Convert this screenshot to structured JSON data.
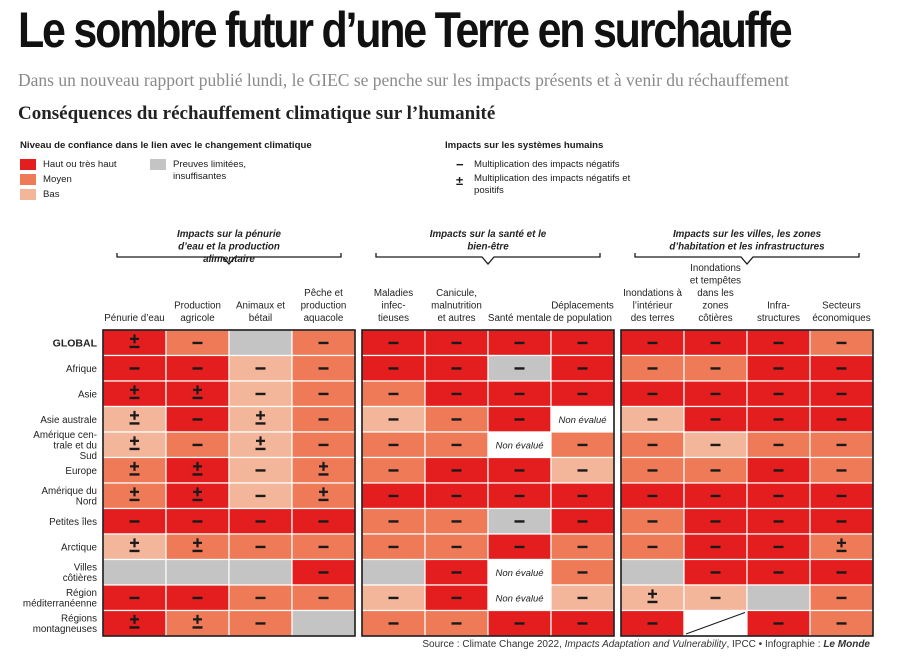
{
  "title": "Le sombre futur d’une Terre en surchauffe",
  "subtitle": "Dans un nouveau rapport publié lundi, le GIEC se penche sur les impacts présents et à venir du réchauffement",
  "colors": {
    "high": "#e41e1f",
    "medium": "#ee7a57",
    "low": "#f4b69a",
    "limited": "#c4c4c4",
    "none": "#ffffff",
    "grid": "#1a1a1a"
  },
  "legend": {
    "confidence_title": "Niveau de confiance dans le lien avec le changement climatique",
    "confidence_items": [
      {
        "key": "high",
        "label": "Haut ou très haut"
      },
      {
        "key": "medium",
        "label": "Moyen"
      },
      {
        "key": "low",
        "label": "Bas"
      },
      {
        "key": "limited",
        "label": "Preuves limitées, insuffisantes"
      }
    ],
    "impacts_title": "Impacts sur les systèmes humains",
    "impacts_items": [
      {
        "symbol": "−",
        "label": "Multiplication des impacts négatifs"
      },
      {
        "symbol": "±",
        "label": "Multiplication des impacts négatifs et positifs"
      }
    ]
  },
  "source": {
    "prefix": "Source : Climate Change 2022, ",
    "report": "Impacts Adaptation and Vulnerability",
    "middle": ", IPCC  •  Infographie : ",
    "publisher": "Le Monde"
  },
  "chart_data": {
    "type": "table",
    "title": "Conséquences du réchauffement climatique sur l’humanité",
    "not_assessed_label": "Non évalué",
    "groups": [
      {
        "label": "Impacts sur la pénurie d’eau et la production alimentaire",
        "columns": [
          0,
          1,
          2,
          3
        ]
      },
      {
        "label": "Impacts sur la santé et le bien-être",
        "columns": [
          4,
          5,
          6,
          7
        ]
      },
      {
        "label": "Impacts sur les villes, les zones d’habitation et les infrastructures",
        "columns": [
          8,
          9,
          10,
          11
        ]
      }
    ],
    "columns": [
      "Pénurie d’eau",
      "Production agricole",
      "Animaux et bétail",
      "Pêche et production aquacole",
      "Maladies infec- tieuses",
      "Canicule, malnutrition et autres",
      "Santé mentale",
      "Déplacements de population",
      "Inondations à l’intérieur des terres",
      "Inondations et tempêtes dans les zones côtières",
      "Infra- structures",
      "Secteurs écono­miques"
    ],
    "rows": [
      {
        "region": "GLOBAL",
        "cells": [
          [
            "high",
            "±"
          ],
          [
            "medium",
            "−"
          ],
          [
            "limited",
            ""
          ],
          [
            "medium",
            "−"
          ],
          [
            "high",
            "−"
          ],
          [
            "high",
            "−"
          ],
          [
            "high",
            "−"
          ],
          [
            "high",
            "−"
          ],
          [
            "high",
            "−"
          ],
          [
            "high",
            "−"
          ],
          [
            "high",
            "−"
          ],
          [
            "medium",
            "−"
          ]
        ]
      },
      {
        "region": "Afrique",
        "cells": [
          [
            "high",
            "−"
          ],
          [
            "high",
            "−"
          ],
          [
            "low",
            "−"
          ],
          [
            "medium",
            "−"
          ],
          [
            "high",
            "−"
          ],
          [
            "high",
            "−"
          ],
          [
            "limited",
            "−"
          ],
          [
            "high",
            "−"
          ],
          [
            "medium",
            "−"
          ],
          [
            "medium",
            "−"
          ],
          [
            "high",
            "−"
          ],
          [
            "high",
            "−"
          ]
        ]
      },
      {
        "region": "Asie",
        "cells": [
          [
            "high",
            "±"
          ],
          [
            "high",
            "±"
          ],
          [
            "low",
            "−"
          ],
          [
            "medium",
            "−"
          ],
          [
            "medium",
            "−"
          ],
          [
            "high",
            "−"
          ],
          [
            "high",
            "−"
          ],
          [
            "high",
            "−"
          ],
          [
            "high",
            "−"
          ],
          [
            "high",
            "−"
          ],
          [
            "high",
            "−"
          ],
          [
            "high",
            "−"
          ]
        ]
      },
      {
        "region": "Asie australe",
        "cells": [
          [
            "low",
            "±"
          ],
          [
            "high",
            "−"
          ],
          [
            "low",
            "±"
          ],
          [
            "medium",
            "−"
          ],
          [
            "low",
            "−"
          ],
          [
            "medium",
            "−"
          ],
          [
            "high",
            "−"
          ],
          [
            "none",
            "na"
          ],
          [
            "low",
            "−"
          ],
          [
            "high",
            "−"
          ],
          [
            "high",
            "−"
          ],
          [
            "high",
            "−"
          ]
        ]
      },
      {
        "region": "Amérique cen- trale et du Sud",
        "cells": [
          [
            "low",
            "±"
          ],
          [
            "medium",
            "−"
          ],
          [
            "low",
            "±"
          ],
          [
            "medium",
            "−"
          ],
          [
            "medium",
            "−"
          ],
          [
            "medium",
            "−"
          ],
          [
            "none",
            "na"
          ],
          [
            "medium",
            "−"
          ],
          [
            "medium",
            "−"
          ],
          [
            "low",
            "−"
          ],
          [
            "medium",
            "−"
          ],
          [
            "medium",
            "−"
          ]
        ]
      },
      {
        "region": "Europe",
        "cells": [
          [
            "medium",
            "±"
          ],
          [
            "high",
            "±"
          ],
          [
            "low",
            "−"
          ],
          [
            "medium",
            "±"
          ],
          [
            "medium",
            "−"
          ],
          [
            "high",
            "−"
          ],
          [
            "high",
            "−"
          ],
          [
            "low",
            "−"
          ],
          [
            "medium",
            "−"
          ],
          [
            "medium",
            "−"
          ],
          [
            "high",
            "−"
          ],
          [
            "medium",
            "−"
          ]
        ]
      },
      {
        "region": "Amérique du Nord",
        "cells": [
          [
            "medium",
            "±"
          ],
          [
            "high",
            "±"
          ],
          [
            "low",
            "−"
          ],
          [
            "medium",
            "±"
          ],
          [
            "high",
            "−"
          ],
          [
            "high",
            "−"
          ],
          [
            "high",
            "−"
          ],
          [
            "high",
            "−"
          ],
          [
            "high",
            "−"
          ],
          [
            "high",
            "−"
          ],
          [
            "high",
            "−"
          ],
          [
            "high",
            "−"
          ]
        ]
      },
      {
        "region": "Petites îles",
        "cells": [
          [
            "high",
            "−"
          ],
          [
            "high",
            "−"
          ],
          [
            "high",
            "−"
          ],
          [
            "high",
            "−"
          ],
          [
            "medium",
            "−"
          ],
          [
            "medium",
            "−"
          ],
          [
            "limited",
            "−"
          ],
          [
            "high",
            "−"
          ],
          [
            "medium",
            "−"
          ],
          [
            "high",
            "−"
          ],
          [
            "high",
            "−"
          ],
          [
            "high",
            "−"
          ]
        ]
      },
      {
        "region": "Arctique",
        "cells": [
          [
            "low",
            "±"
          ],
          [
            "medium",
            "±"
          ],
          [
            "medium",
            "−"
          ],
          [
            "medium",
            "−"
          ],
          [
            "medium",
            "−"
          ],
          [
            "medium",
            "−"
          ],
          [
            "high",
            "−"
          ],
          [
            "medium",
            "−"
          ],
          [
            "medium",
            "−"
          ],
          [
            "high",
            "−"
          ],
          [
            "high",
            "−"
          ],
          [
            "medium",
            "±"
          ]
        ]
      },
      {
        "region": "Villes côtières",
        "cells": [
          [
            "limited",
            ""
          ],
          [
            "limited",
            ""
          ],
          [
            "limited",
            ""
          ],
          [
            "high",
            "−"
          ],
          [
            "limited",
            ""
          ],
          [
            "high",
            "−"
          ],
          [
            "none",
            "na"
          ],
          [
            "medium",
            "−"
          ],
          [
            "limited",
            ""
          ],
          [
            "high",
            "−"
          ],
          [
            "high",
            "−"
          ],
          [
            "high",
            "−"
          ]
        ]
      },
      {
        "region": "Région méditerranéenne",
        "cells": [
          [
            "high",
            "−"
          ],
          [
            "high",
            "−"
          ],
          [
            "medium",
            "−"
          ],
          [
            "medium",
            "−"
          ],
          [
            "low",
            "−"
          ],
          [
            "high",
            "−"
          ],
          [
            "none",
            "na"
          ],
          [
            "low",
            "−"
          ],
          [
            "low",
            "±"
          ],
          [
            "low",
            "−"
          ],
          [
            "limited",
            ""
          ],
          [
            "medium",
            "−"
          ]
        ]
      },
      {
        "region": "Régions montagneuses",
        "cells": [
          [
            "high",
            "±"
          ],
          [
            "medium",
            "±"
          ],
          [
            "medium",
            "−"
          ],
          [
            "limited",
            ""
          ],
          [
            "medium",
            "−"
          ],
          [
            "medium",
            "−"
          ],
          [
            "high",
            "−"
          ],
          [
            "high",
            "−"
          ],
          [
            "high",
            "−"
          ],
          [
            "none",
            "slash"
          ],
          [
            "high",
            "−"
          ],
          [
            "medium",
            "−"
          ]
        ]
      }
    ]
  }
}
